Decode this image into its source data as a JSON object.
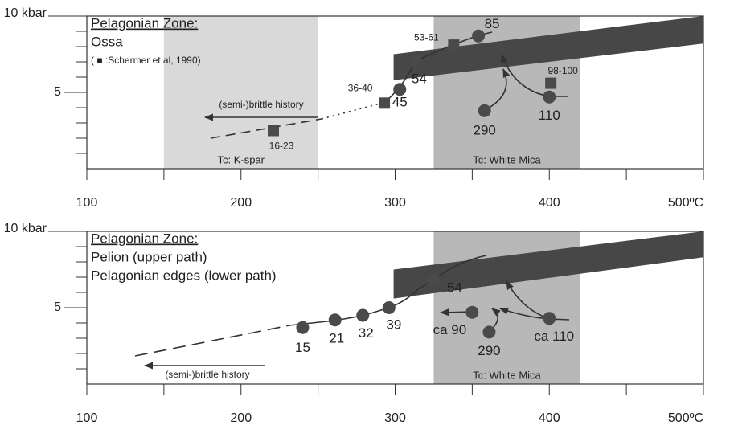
{
  "chart_data": [
    {
      "type": "scatter",
      "title": "Pelagonian Zone:",
      "subtitles": [
        "Ossa"
      ],
      "note": "( ■ :Schermer et al, 1990)",
      "brittle_label": "(semi-)brittle history",
      "xlim": [
        100,
        500
      ],
      "ylim": [
        0,
        10
      ],
      "xticks": [
        100,
        200,
        300,
        400,
        {
          "value": 500,
          "label": "500ºC"
        }
      ],
      "xminorticks": [
        150,
        250,
        350,
        450
      ],
      "yticks": [
        {
          "value": 10,
          "label": "10 kbar"
        },
        5
      ],
      "yminorticks": [
        1,
        2,
        3,
        4,
        6,
        7,
        8,
        9
      ],
      "bands": [
        {
          "label": "Tc: K-spar",
          "range": [
            150,
            250
          ],
          "color": "#d9d9d9"
        },
        {
          "label": "Tc: White Mica",
          "range": [
            325,
            420
          ],
          "color": "#b8b8b8"
        }
      ],
      "gradient_band": {
        "x": [
          299,
          500
        ],
        "upper": [
          7.5,
          10
        ],
        "lower": [
          5.8,
          8.2
        ],
        "color": "#474747"
      },
      "circles": {
        "x": [
          303,
          313,
          354,
          358,
          400
        ],
        "y": [
          5.2,
          7.1,
          8.7,
          3.8,
          4.7
        ],
        "labels": [
          "45",
          "54",
          "85",
          "290",
          "110"
        ],
        "color": "#4a4a4a"
      },
      "squares": {
        "x": [
          221,
          293,
          338,
          401
        ],
        "y": [
          2.5,
          4.3,
          8.1,
          5.6
        ],
        "labels": [
          "16-23",
          "36-40",
          "53-61",
          "98-100"
        ],
        "color": "#4a4a4a"
      }
    },
    {
      "type": "scatter",
      "title": "Pelagonian Zone:",
      "subtitles": [
        "Pelion (upper path)",
        "Pelagonian edges (lower path)"
      ],
      "brittle_label": "(semi-)brittle history",
      "xlim": [
        100,
        500
      ],
      "ylim": [
        0,
        10
      ],
      "xticks": [
        100,
        200,
        300,
        400,
        {
          "value": 500,
          "label": "500ºC"
        }
      ],
      "xminorticks": [
        150,
        250,
        350,
        450
      ],
      "yticks": [
        {
          "value": 10,
          "label": "10 kbar"
        },
        5
      ],
      "yminorticks": [
        1,
        2,
        3,
        4,
        6,
        7,
        8,
        9
      ],
      "bands": [
        {
          "label": "Tc: White Mica",
          "range": [
            325,
            420
          ],
          "color": "#b8b8b8"
        }
      ],
      "gradient_band": {
        "x": [
          299,
          500
        ],
        "upper": [
          7.5,
          10
        ],
        "lower": [
          5.6,
          8.3
        ],
        "color": "#474747"
      },
      "circles": {
        "x": [
          240,
          261,
          279,
          296,
          325,
          350,
          361,
          400
        ],
        "y": [
          3.7,
          4.2,
          4.5,
          5.0,
          6.8,
          4.7,
          3.4,
          4.3
        ],
        "labels": [
          "15",
          "21",
          "32",
          "39",
          "54",
          "ca 90",
          "290",
          "ca 110"
        ],
        "color": "#4a4a4a"
      }
    }
  ]
}
